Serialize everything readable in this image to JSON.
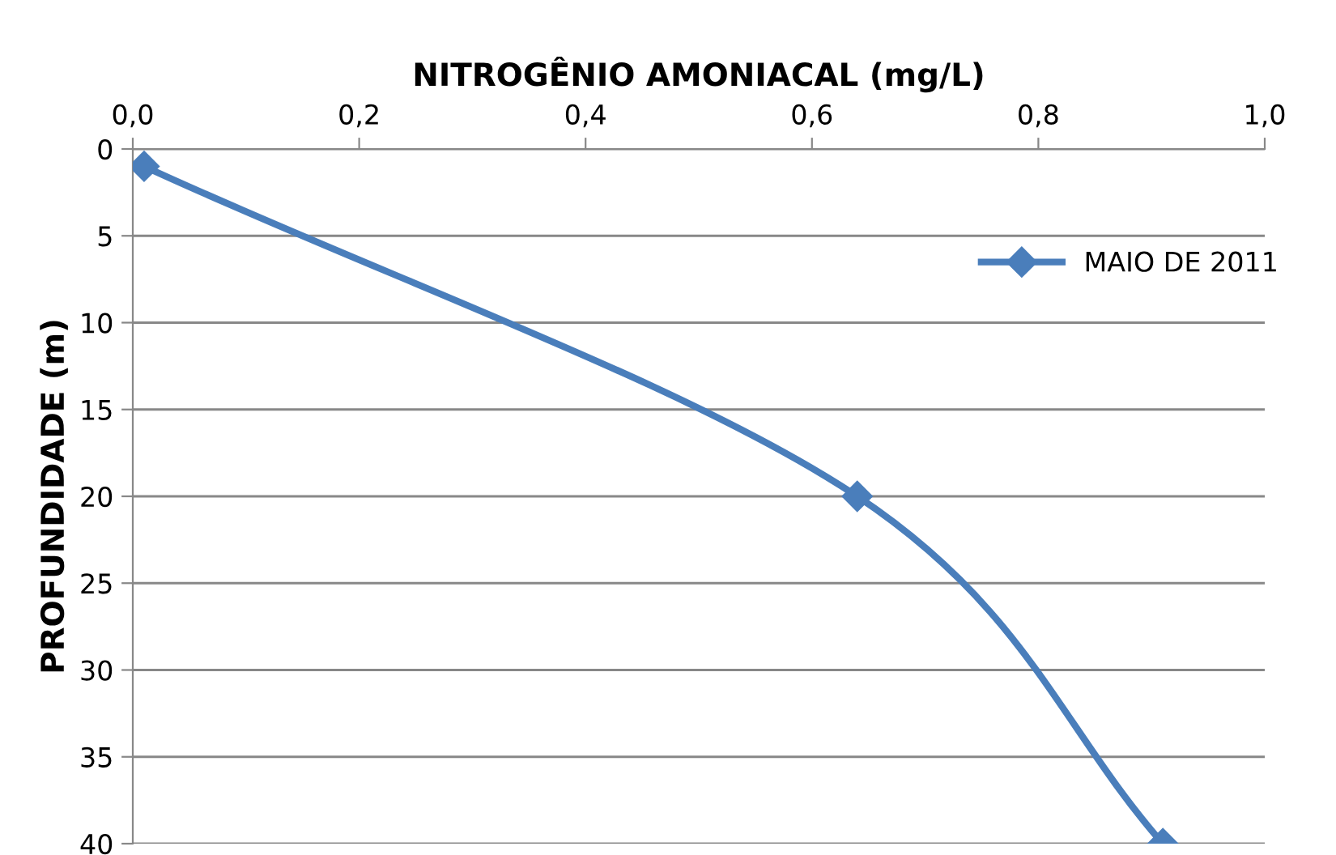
{
  "chart_data": {
    "type": "line",
    "xlabel": "NITROGÊNIO AMONIACAL (mg/L)",
    "ylabel": "PROFUNDIDADE (m)",
    "series": [
      {
        "name": "MAIO DE 2011",
        "color": "#4a7ebb",
        "x": [
          0.01,
          0.64,
          0.91
        ],
        "values": [
          1,
          20,
          40
        ]
      }
    ],
    "xlim": [
      0,
      1
    ],
    "xticks": [
      {
        "value": 0,
        "label": "0,0"
      },
      {
        "value": 0.2,
        "label": "0,2"
      },
      {
        "value": 0.4,
        "label": "0,4"
      },
      {
        "value": 0.6,
        "label": "0,6"
      },
      {
        "value": 0.8,
        "label": "0,8"
      },
      {
        "value": 1,
        "label": "1,0"
      }
    ],
    "ylim": [
      40,
      0
    ],
    "yticks": [
      0,
      5,
      10,
      15,
      20,
      25,
      30,
      35,
      40
    ],
    "grid": "y",
    "legend": "top right",
    "marker": "diamond",
    "line_style": "solid"
  }
}
